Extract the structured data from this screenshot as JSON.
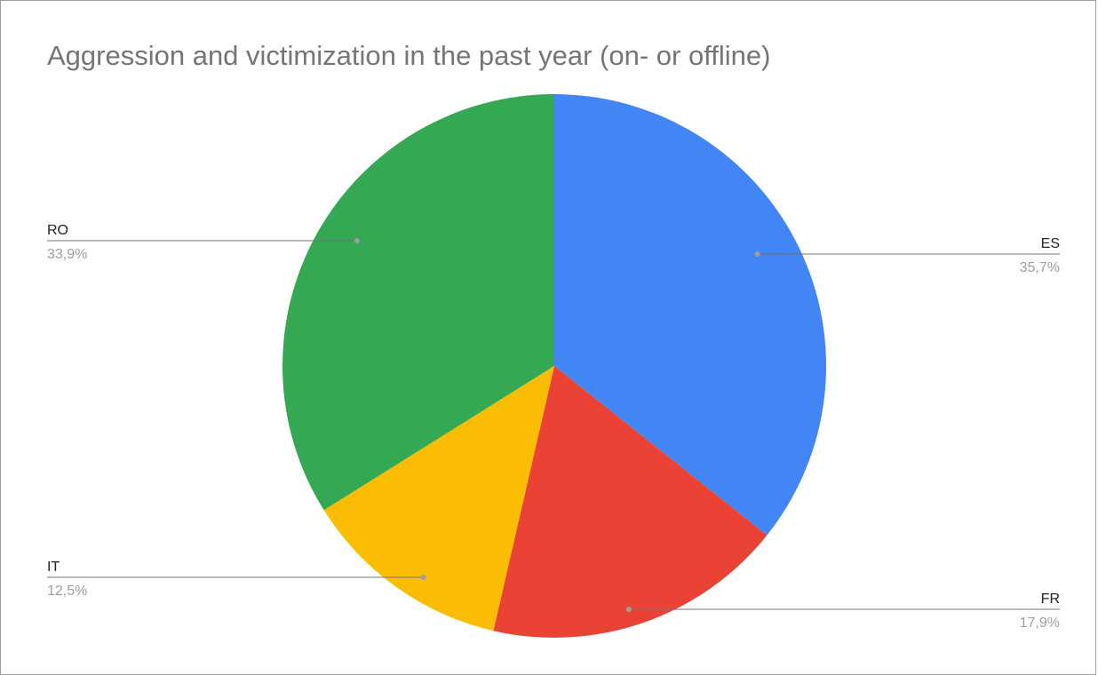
{
  "chart_data": {
    "type": "pie",
    "title": "Aggression and victimization in the past year (on- or offline)",
    "slices": [
      {
        "label": "ES",
        "value": 35.7,
        "display": "35,7%",
        "color": "#4285F4"
      },
      {
        "label": "FR",
        "value": 17.9,
        "display": "17,9%",
        "color": "#EA4335"
      },
      {
        "label": "IT",
        "value": 12.5,
        "display": "12,5%",
        "color": "#FBBC04"
      },
      {
        "label": "RO",
        "value": 33.9,
        "display": "33,9%",
        "color": "#34A853"
      }
    ],
    "start_angle": "12 o'clock",
    "direction": "clockwise",
    "legend": "none",
    "label_style": "leader lines with category and percentage"
  }
}
